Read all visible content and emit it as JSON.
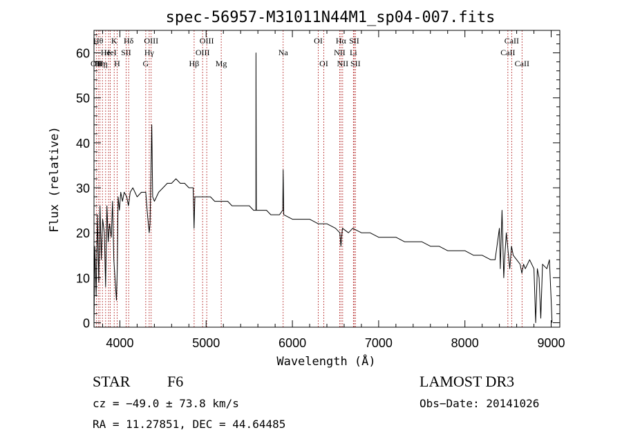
{
  "chart_data": {
    "type": "line",
    "title": "spec-56957-M31011N44M1_sp04-007.fits",
    "xlabel": "Wavelength (Å)",
    "ylabel": "Flux (relative)",
    "xlim": [
      3700,
      9100
    ],
    "ylim": [
      -1,
      65
    ],
    "xticks": [
      4000,
      5000,
      6000,
      7000,
      8000,
      9000
    ],
    "yticks": [
      0,
      10,
      20,
      30,
      40,
      50,
      60
    ],
    "series": [
      {
        "points": [
          [
            3700,
            0
          ],
          [
            3710,
            17
          ],
          [
            3725,
            6
          ],
          [
            3740,
            24
          ],
          [
            3755,
            9
          ],
          [
            3770,
            26
          ],
          [
            3785,
            14
          ],
          [
            3800,
            23
          ],
          [
            3820,
            20
          ],
          [
            3835,
            8
          ],
          [
            3850,
            26
          ],
          [
            3865,
            18
          ],
          [
            3880,
            22
          ],
          [
            3900,
            19
          ],
          [
            3915,
            27
          ],
          [
            3930,
            14
          ],
          [
            3950,
            8
          ],
          [
            3960,
            5
          ],
          [
            3970,
            12
          ],
          [
            3980,
            28
          ],
          [
            3995,
            25
          ],
          [
            4010,
            29
          ],
          [
            4030,
            27
          ],
          [
            4050,
            29
          ],
          [
            4080,
            28
          ],
          [
            4100,
            26
          ],
          [
            4120,
            29
          ],
          [
            4150,
            30
          ],
          [
            4200,
            28
          ],
          [
            4250,
            29
          ],
          [
            4300,
            29
          ],
          [
            4320,
            24
          ],
          [
            4340,
            20
          ],
          [
            4350,
            22
          ],
          [
            4370,
            44
          ],
          [
            4380,
            28
          ],
          [
            4400,
            27
          ],
          [
            4450,
            29
          ],
          [
            4500,
            30
          ],
          [
            4550,
            31
          ],
          [
            4600,
            31
          ],
          [
            4650,
            32
          ],
          [
            4700,
            31
          ],
          [
            4750,
            31
          ],
          [
            4800,
            30
          ],
          [
            4850,
            30
          ],
          [
            4860,
            21
          ],
          [
            4870,
            28
          ],
          [
            4900,
            28
          ],
          [
            4950,
            28
          ],
          [
            5000,
            28
          ],
          [
            5050,
            28
          ],
          [
            5100,
            27
          ],
          [
            5150,
            27
          ],
          [
            5200,
            27
          ],
          [
            5250,
            27
          ],
          [
            5300,
            26
          ],
          [
            5350,
            26
          ],
          [
            5400,
            26
          ],
          [
            5450,
            26
          ],
          [
            5500,
            26
          ],
          [
            5550,
            25
          ],
          [
            5577,
            25
          ],
          [
            5578,
            60
          ],
          [
            5582,
            25
          ],
          [
            5650,
            25
          ],
          [
            5700,
            25
          ],
          [
            5750,
            24
          ],
          [
            5800,
            24
          ],
          [
            5850,
            24
          ],
          [
            5888,
            25
          ],
          [
            5893,
            34
          ],
          [
            5900,
            24
          ],
          [
            6000,
            23
          ],
          [
            6100,
            23
          ],
          [
            6200,
            23
          ],
          [
            6300,
            22
          ],
          [
            6400,
            22
          ],
          [
            6500,
            21
          ],
          [
            6550,
            20
          ],
          [
            6563,
            17
          ],
          [
            6580,
            21
          ],
          [
            6650,
            20
          ],
          [
            6700,
            21
          ],
          [
            6800,
            20
          ],
          [
            6900,
            20
          ],
          [
            7000,
            19
          ],
          [
            7100,
            19
          ],
          [
            7200,
            19
          ],
          [
            7300,
            18
          ],
          [
            7400,
            18
          ],
          [
            7500,
            18
          ],
          [
            7600,
            17
          ],
          [
            7700,
            17
          ],
          [
            7800,
            16
          ],
          [
            7900,
            16
          ],
          [
            8000,
            16
          ],
          [
            8100,
            15
          ],
          [
            8200,
            15
          ],
          [
            8300,
            14
          ],
          [
            8350,
            14
          ],
          [
            8400,
            21
          ],
          [
            8410,
            12
          ],
          [
            8430,
            25
          ],
          [
            8450,
            10
          ],
          [
            8460,
            14
          ],
          [
            8480,
            20
          ],
          [
            8500,
            16
          ],
          [
            8520,
            12
          ],
          [
            8540,
            17
          ],
          [
            8560,
            15
          ],
          [
            8600,
            14
          ],
          [
            8640,
            13
          ],
          [
            8660,
            11
          ],
          [
            8680,
            13
          ],
          [
            8700,
            12
          ],
          [
            8750,
            14
          ],
          [
            8800,
            12
          ],
          [
            8820,
            0
          ],
          [
            8840,
            12
          ],
          [
            8860,
            10
          ],
          [
            8880,
            1
          ],
          [
            8900,
            13
          ],
          [
            8950,
            12
          ],
          [
            8980,
            14
          ],
          [
            9000,
            5
          ],
          [
            9010,
            0
          ]
        ]
      }
    ],
    "lines": [
      {
        "x": 3727,
        "label": "OII",
        "row": 3
      },
      {
        "x": 3750,
        "label": "Hθ",
        "row": 1
      },
      {
        "x": 3770,
        "label": "Hη",
        "row": 3
      },
      {
        "x": 3798,
        "label": "Hη",
        "row": 3
      },
      {
        "x": 3835,
        "label": "He",
        "row": 2
      },
      {
        "x": 3869,
        "label": "",
        "row": 2
      },
      {
        "x": 3889,
        "label": "HeI",
        "row": 2
      },
      {
        "x": 3934,
        "label": "K",
        "row": 1
      },
      {
        "x": 3968,
        "label": "H",
        "row": 3
      },
      {
        "x": 4072,
        "label": "SII",
        "row": 2
      },
      {
        "x": 4102,
        "label": "Hδ",
        "row": 1
      },
      {
        "x": 4300,
        "label": "G",
        "row": 3
      },
      {
        "x": 4340,
        "label": "Hγ",
        "row": 2
      },
      {
        "x": 4363,
        "label": "OIII",
        "row": 1
      },
      {
        "x": 4861,
        "label": "Hβ",
        "row": 3
      },
      {
        "x": 4959,
        "label": "OIII",
        "row": 2
      },
      {
        "x": 5007,
        "label": "OIII",
        "row": 1
      },
      {
        "x": 5175,
        "label": "Mg",
        "row": 3
      },
      {
        "x": 5893,
        "label": "Na",
        "row": 2
      },
      {
        "x": 6300,
        "label": "OI",
        "row": 1
      },
      {
        "x": 6364,
        "label": "OI",
        "row": 3
      },
      {
        "x": 6548,
        "label": "NII",
        "row": 2
      },
      {
        "x": 6563,
        "label": "Hα",
        "row": 1
      },
      {
        "x": 6583,
        "label": "NII",
        "row": 3
      },
      {
        "x": 6707,
        "label": "Li",
        "row": 2
      },
      {
        "x": 6716,
        "label": "SII",
        "row": 1
      },
      {
        "x": 6731,
        "label": "SII",
        "row": 3
      },
      {
        "x": 8498,
        "label": "CaII",
        "row": 2
      },
      {
        "x": 8542,
        "label": "CaII",
        "row": 1
      },
      {
        "x": 8662,
        "label": "CaII",
        "row": 3
      }
    ]
  },
  "footer": {
    "object_class": "STAR",
    "subclass": "F6",
    "survey": "LAMOST DR3",
    "redshift": "cz = −49.0 ± 73.8 km/s",
    "obs_date": "Obs−Date: 20141026",
    "coords": "RA =  11.27851, DEC =  44.64485"
  }
}
